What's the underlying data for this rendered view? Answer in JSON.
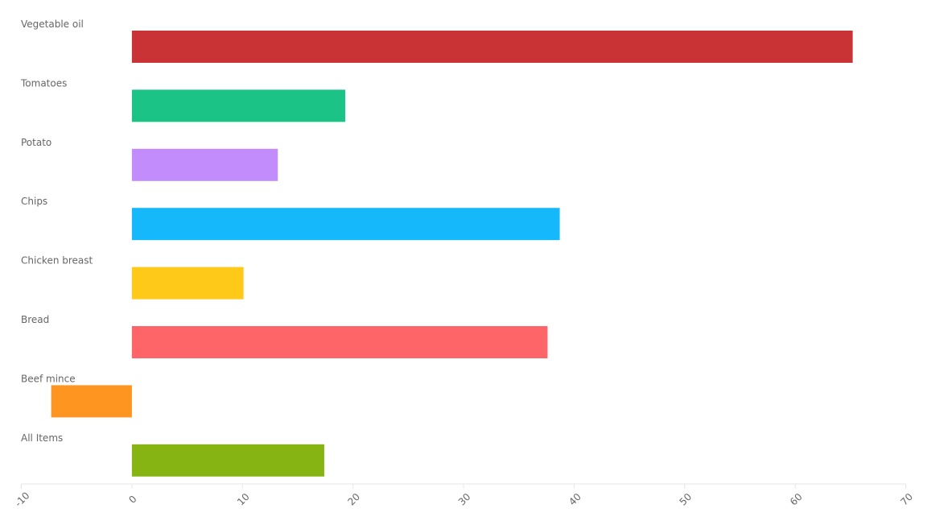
{
  "chart_data": {
    "type": "bar",
    "orientation": "horizontal",
    "title": "",
    "xlabel": "",
    "ylabel": "",
    "xlim": [
      -10,
      70
    ],
    "ticks": [
      -10,
      0,
      10,
      20,
      30,
      40,
      50,
      60,
      70
    ],
    "tick_labels": [
      "-10",
      "0",
      "10",
      "20",
      "30",
      "40",
      "50",
      "60",
      "70"
    ],
    "grid": false,
    "categories": [
      "Vegetable oil",
      "Tomatoes",
      "Potato",
      "Chips",
      "Chicken breast",
      "Bread",
      "Beef mince",
      "All Items"
    ],
    "values": [
      65.2,
      19.3,
      13.2,
      38.7,
      10.1,
      37.6,
      -7.3,
      17.4
    ],
    "colors": [
      "#c93335",
      "#1bc486",
      "#c38cfc",
      "#16b8fc",
      "#fec918",
      "#fe6569",
      "#fe9520",
      "#86b513"
    ],
    "label_color": "#666666",
    "axis_color": "#e6e6e6"
  }
}
